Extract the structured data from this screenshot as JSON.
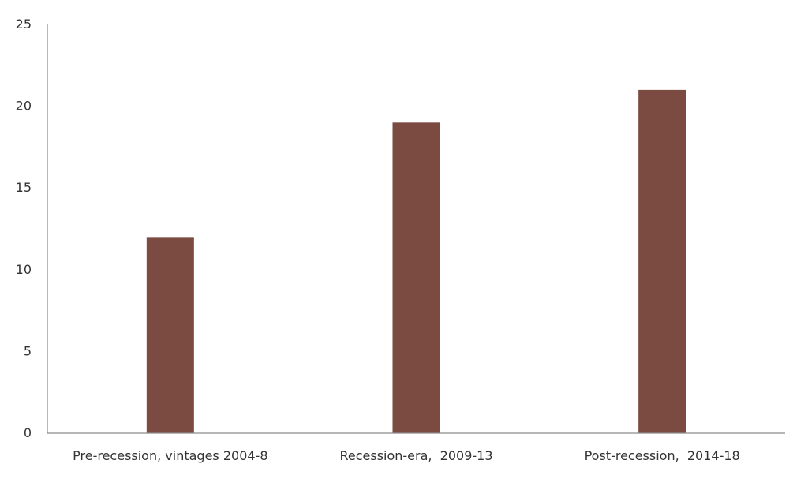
{
  "chart_data": {
    "type": "bar",
    "categories": [
      "Pre-recession, vintages 2004-8",
      "Recession-era,  2009-13",
      "Post-recession,  2014-18"
    ],
    "values": [
      12,
      19,
      21
    ],
    "ylim": [
      0,
      25
    ],
    "yticks": [
      0,
      5,
      10,
      15,
      20,
      25
    ],
    "grid": false,
    "legend": "none",
    "title": "",
    "xlabel": "",
    "ylabel": "",
    "bar_color": "#7b4a40",
    "axis_color": "#8c8c8c"
  }
}
